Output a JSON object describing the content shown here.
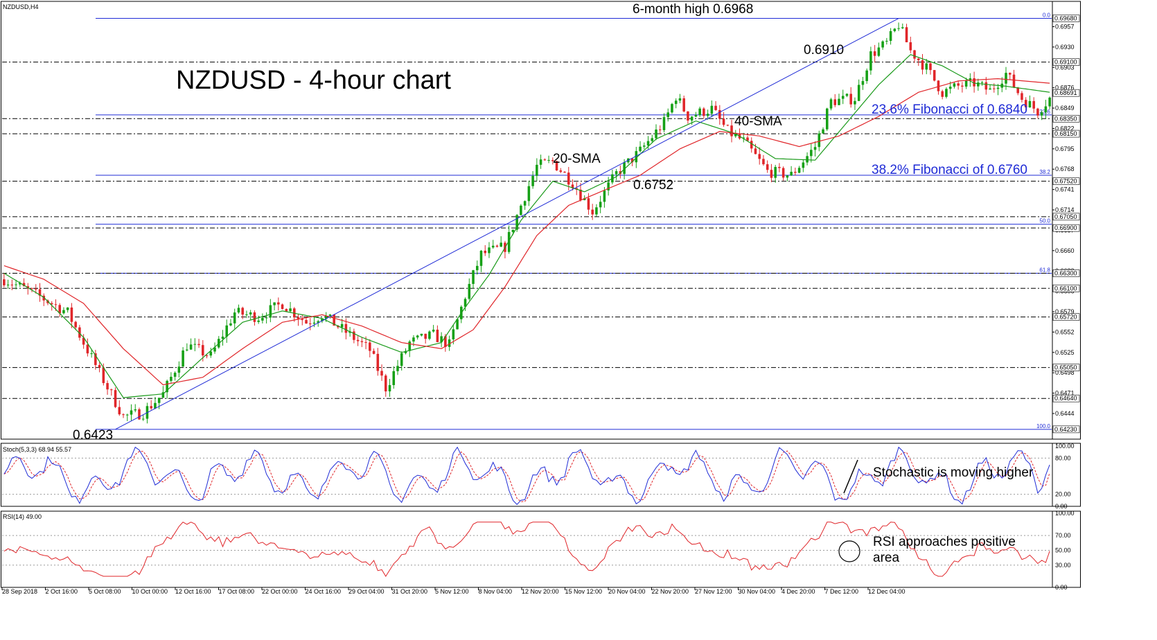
{
  "chart_data": [
    {
      "type": "candlestick",
      "symbol_label": "NZDUSD,H4",
      "title": "NZDUSD - 4-hour chart",
      "ylim": [
        0.641,
        0.6985
      ],
      "y_ticks": [
        0.6957,
        0.693,
        0.6903,
        0.6876,
        0.6849,
        0.6822,
        0.6795,
        0.6768,
        0.6741,
        0.6714,
        0.6687,
        0.666,
        0.6633,
        0.6606,
        0.6579,
        0.6552,
        0.6525,
        0.6498,
        0.6471,
        0.6444
      ],
      "price_tags": [
        "0.69680",
        "0.69100",
        "0.68691",
        "0.68350",
        "0.68150",
        "0.67520",
        "0.67050",
        "0.66900",
        "0.66300",
        "0.66100",
        "0.65720",
        "0.65050",
        "0.64640",
        "0.64230"
      ],
      "horizontal_levels": [
        {
          "value": 0.6968,
          "style": "solid",
          "color": "#1f2bd6",
          "fib_tag": "0.0"
        },
        {
          "value": 0.691,
          "style": "dashdot",
          "color": "#000000"
        },
        {
          "value": 0.684,
          "style": "solid",
          "color": "#1f2bd6",
          "fib_tag": "23.6"
        },
        {
          "value": 0.6835,
          "style": "dashdot",
          "color": "#000000"
        },
        {
          "value": 0.6815,
          "style": "dashdot",
          "color": "#000000"
        },
        {
          "value": 0.676,
          "style": "solid",
          "color": "#1f2bd6",
          "fib_tag": "38.2"
        },
        {
          "value": 0.6752,
          "style": "dashdot",
          "color": "#000000"
        },
        {
          "value": 0.6705,
          "style": "dashdot",
          "color": "#000000"
        },
        {
          "value": 0.6695,
          "style": "solid",
          "color": "#1f2bd6",
          "fib_tag": "50.0"
        },
        {
          "value": 0.669,
          "style": "dashdot",
          "color": "#000000"
        },
        {
          "value": 0.663,
          "style": "solid",
          "color": "#1f2bd6",
          "fib_tag": "61.8"
        },
        {
          "value": 0.663,
          "style": "dashdot",
          "color": "#000000"
        },
        {
          "value": 0.661,
          "style": "dashdot",
          "color": "#000000"
        },
        {
          "value": 0.6572,
          "style": "dashdot",
          "color": "#000000"
        },
        {
          "value": 0.6505,
          "style": "dashdot",
          "color": "#000000"
        },
        {
          "value": 0.6464,
          "style": "dashdot",
          "color": "#000000"
        },
        {
          "value": 0.6423,
          "style": "solid",
          "color": "#1f2bd6",
          "fib_tag": "100.0"
        }
      ],
      "trendline": {
        "from": {
          "bar": 28,
          "value": 0.6423
        },
        "to": {
          "bar": 225,
          "value": 0.6968
        }
      },
      "close_path": [
        [
          0,
          0.6622
        ],
        [
          8,
          0.6602
        ],
        [
          16,
          0.6578
        ],
        [
          24,
          0.6498
        ],
        [
          30,
          0.644
        ],
        [
          35,
          0.6445
        ],
        [
          40,
          0.647
        ],
        [
          46,
          0.6535
        ],
        [
          52,
          0.652
        ],
        [
          58,
          0.6578
        ],
        [
          64,
          0.6572
        ],
        [
          70,
          0.659
        ],
        [
          76,
          0.6565
        ],
        [
          80,
          0.6575
        ],
        [
          86,
          0.6552
        ],
        [
          92,
          0.6528
        ],
        [
          96,
          0.6478
        ],
        [
          102,
          0.6538
        ],
        [
          108,
          0.6548
        ],
        [
          112,
          0.6535
        ],
        [
          116,
          0.66
        ],
        [
          120,
          0.6655
        ],
        [
          126,
          0.6665
        ],
        [
          130,
          0.672
        ],
        [
          134,
          0.6772
        ],
        [
          138,
          0.6778
        ],
        [
          143,
          0.675
        ],
        [
          148,
          0.6712
        ],
        [
          154,
          0.6762
        ],
        [
          160,
          0.6792
        ],
        [
          166,
          0.683
        ],
        [
          169,
          0.6865
        ],
        [
          172,
          0.6838
        ],
        [
          178,
          0.6848
        ],
        [
          182,
          0.6818
        ],
        [
          186,
          0.6805
        ],
        [
          192,
          0.6765
        ],
        [
          198,
          0.676
        ],
        [
          204,
          0.6798
        ],
        [
          208,
          0.6858
        ],
        [
          214,
          0.6862
        ],
        [
          218,
          0.692
        ],
        [
          222,
          0.6935
        ],
        [
          225,
          0.696
        ],
        [
          228,
          0.6925
        ],
        [
          232,
          0.6902
        ],
        [
          236,
          0.687
        ],
        [
          240,
          0.6878
        ],
        [
          244,
          0.6882
        ],
        [
          248,
          0.6872
        ],
        [
          252,
          0.6895
        ],
        [
          256,
          0.6862
        ],
        [
          260,
          0.6845
        ],
        [
          263,
          0.6862
        ]
      ],
      "sma_20": {
        "label": "20-SMA",
        "color": "#1a9a1a",
        "path": [
          [
            0,
            0.663
          ],
          [
            10,
            0.6598
          ],
          [
            20,
            0.6545
          ],
          [
            30,
            0.6465
          ],
          [
            40,
            0.647
          ],
          [
            50,
            0.6518
          ],
          [
            60,
            0.6565
          ],
          [
            70,
            0.658
          ],
          [
            80,
            0.657
          ],
          [
            90,
            0.6545
          ],
          [
            100,
            0.6525
          ],
          [
            110,
            0.6538
          ],
          [
            116,
            0.6585
          ],
          [
            122,
            0.6628
          ],
          [
            130,
            0.67
          ],
          [
            138,
            0.6752
          ],
          [
            146,
            0.6738
          ],
          [
            154,
            0.6758
          ],
          [
            164,
            0.6808
          ],
          [
            174,
            0.6832
          ],
          [
            184,
            0.6815
          ],
          [
            194,
            0.6782
          ],
          [
            204,
            0.678
          ],
          [
            212,
            0.683
          ],
          [
            220,
            0.688
          ],
          [
            228,
            0.692
          ],
          [
            236,
            0.6905
          ],
          [
            244,
            0.6882
          ],
          [
            252,
            0.6878
          ],
          [
            263,
            0.687
          ]
        ]
      },
      "sma_40": {
        "label": "40-SMA",
        "color": "#e0262a",
        "path": [
          [
            0,
            0.664
          ],
          [
            10,
            0.6622
          ],
          [
            20,
            0.659
          ],
          [
            30,
            0.653
          ],
          [
            40,
            0.6482
          ],
          [
            50,
            0.6492
          ],
          [
            60,
            0.653
          ],
          [
            70,
            0.6565
          ],
          [
            80,
            0.6575
          ],
          [
            90,
            0.656
          ],
          [
            100,
            0.6538
          ],
          [
            110,
            0.653
          ],
          [
            118,
            0.6555
          ],
          [
            126,
            0.6612
          ],
          [
            134,
            0.668
          ],
          [
            142,
            0.672
          ],
          [
            150,
            0.6738
          ],
          [
            160,
            0.676
          ],
          [
            170,
            0.6795
          ],
          [
            180,
            0.6818
          ],
          [
            190,
            0.6812
          ],
          [
            200,
            0.6798
          ],
          [
            210,
            0.6812
          ],
          [
            220,
            0.6838
          ],
          [
            230,
            0.687
          ],
          [
            240,
            0.6885
          ],
          [
            250,
            0.6888
          ],
          [
            263,
            0.6882
          ]
        ]
      },
      "annotations": [
        {
          "text": "6-month high 0.6968",
          "bar": 225,
          "value": 0.6968
        },
        {
          "text": "0.6910",
          "bar": 248,
          "value": 0.691
        },
        {
          "text": "0.6752",
          "bar": 198,
          "value": 0.6752
        },
        {
          "text": "0.6423",
          "bar": 28,
          "value": 0.6423
        }
      ],
      "level_notes": [
        {
          "text": "23.6% Fibonacci of 0.6840",
          "value": 0.684
        },
        {
          "text": "38.2% Fibonacci of 0.6760",
          "value": 0.676
        }
      ],
      "x_ticks": [
        "28 Sep 2018",
        "2 Oct 16:00",
        "5 Oct 08:00",
        "10 Oct 00:00",
        "12 Oct 16:00",
        "17 Oct 08:00",
        "22 Oct 00:00",
        "24 Oct 16:00",
        "29 Oct 04:00",
        "31 Oct 20:00",
        "5 Nov 12:00",
        "8 Nov 04:00",
        "12 Nov 20:00",
        "15 Nov 12:00",
        "20 Nov 04:00",
        "22 Nov 20:00",
        "27 Nov 12:00",
        "30 Nov 04:00",
        "4 Dec 20:00",
        "7 Dec 12:00",
        "12 Dec 04:00"
      ]
    },
    {
      "type": "line",
      "indicator_label": "Stoch(5,3,3) 68.94 55.57",
      "ylim": [
        0,
        100
      ],
      "y_ticks": [
        100,
        80,
        20,
        0
      ],
      "series": [
        {
          "color": "#1f2bd6",
          "style": "solid"
        },
        {
          "color": "#e0262a",
          "style": "dashed"
        }
      ],
      "note": "Stochastic is moving higher"
    },
    {
      "type": "line",
      "indicator_label": "RSI(14) 49.00",
      "ylim": [
        0,
        100
      ],
      "y_ticks": [
        100,
        70,
        50,
        30,
        0
      ],
      "series": [
        {
          "color": "#e0262a",
          "style": "solid"
        }
      ],
      "note": "RSI approaches positive area"
    }
  ]
}
